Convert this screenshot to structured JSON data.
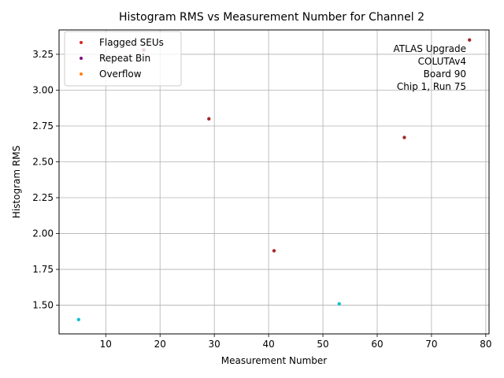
{
  "chart_data": {
    "type": "scatter",
    "title": "Histogram RMS vs Measurement Number for Channel 2",
    "xlabel": "Measurement Number",
    "ylabel": "Histogram RMS",
    "xlim": [
      1.4,
      80.6
    ],
    "ylim": [
      1.3,
      3.42
    ],
    "xticks": [
      10,
      20,
      30,
      40,
      50,
      60,
      70,
      80
    ],
    "yticks": [
      1.5,
      1.75,
      2.0,
      2.25,
      2.5,
      2.75,
      3.0,
      3.25
    ],
    "grid": true,
    "legend_position": "top-left",
    "legend": [
      {
        "label": "Flagged SEUs",
        "color": "#d62728"
      },
      {
        "label": "Repeat Bin",
        "color": "#800080"
      },
      {
        "label": "Overflow",
        "color": "#ff7f0e"
      }
    ],
    "annotation": [
      "ATLAS Upgrade",
      "COLUTAv4",
      "Board 90",
      "Chip 1, Run 75"
    ],
    "points": [
      {
        "x": 5,
        "y": 1.4,
        "color": "#17becf"
      },
      {
        "x": 17,
        "y": 3.28,
        "color": "#a52a2a"
      },
      {
        "x": 29,
        "y": 2.8,
        "color": "#a52a2a"
      },
      {
        "x": 41,
        "y": 1.88,
        "color": "#a52a2a"
      },
      {
        "x": 53,
        "y": 1.51,
        "color": "#17becf"
      },
      {
        "x": 65,
        "y": 2.67,
        "color": "#a52a2a"
      },
      {
        "x": 77,
        "y": 3.35,
        "color": "#a52a2a"
      }
    ]
  }
}
